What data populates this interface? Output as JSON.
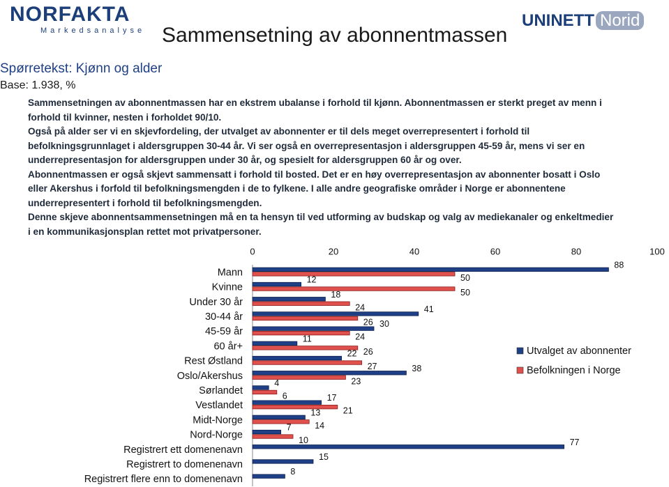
{
  "header": {
    "logo_left": "NORFAKTA",
    "logo_left_sub": "Markedsanalyse",
    "logo_right": "UNINETT",
    "logo_right_tag": "Norid",
    "title": "Sammensetning av abonnentmassen",
    "question": "Spørretekst: Kjønn og alder",
    "base": "Base: 1.938, %"
  },
  "paragraphs": [
    "Sammensetningen av abonnentmassen har en ekstrem ubalanse i forhold til kjønn. Abonnentmassen er sterkt preget av menn i forhold til kvinner, nesten i forholdet 90/10.",
    "Også på alder ser vi en skjevfordeling, der utvalget av abonnenter er til dels meget overrepresentert i forhold til befolkningsgrunnlaget i aldersgruppen 30-44 år. Vi ser også en overrepresentasjon i aldersgruppen 45-59 år, mens vi ser en underrepresentasjon for aldersgruppen under 30 år, og spesielt for aldersgruppen 60 år og over.",
    "Abonnentmassen er også skjevt sammensatt i forhold til bosted. Det er en høy overrepresentasjon av abonnenter bosatt i Oslo eller Akershus i forfold til befolkningsmengden i de to fylkene. I alle andre geografiske områder i Norge er abonnentene underrepresentert i forhold til befolkningsmengden.",
    "Denne skjeve abonnentsammensetningen må en ta hensyn til ved utforming av budskap og valg av mediekanaler og enkeltmedier i en kommunikasjonsplan rettet mot privatpersoner."
  ],
  "chart_data": {
    "type": "hbar",
    "categories": [
      "Mann",
      "Kvinne",
      "Under 30 år",
      "30-44 år",
      "45-59 år",
      "60 år+",
      "Rest Østland",
      "Oslo/Akershus",
      "Sørlandet",
      "Vestlandet",
      "Midt-Norge",
      "Nord-Norge",
      "Registrert ett domenenavn",
      "Registrert to domenenavn",
      "Registrert flere enn to domenenavn"
    ],
    "series": [
      {
        "name": "Utvalget av abonnenter",
        "color": "#1f3f86",
        "values": [
          88,
          12,
          18,
          41,
          30,
          11,
          22,
          38,
          4,
          17,
          13,
          7,
          77,
          15,
          8
        ]
      },
      {
        "name": "Befolkningen i Norge",
        "color": "#e0504d",
        "values": [
          50,
          50,
          24,
          26,
          24,
          26,
          27,
          23,
          6,
          21,
          14,
          10,
          null,
          null,
          null
        ]
      }
    ],
    "xlim": [
      0,
      100
    ],
    "xticks": [
      0,
      20,
      40,
      60,
      80,
      100
    ],
    "legend": "right"
  }
}
